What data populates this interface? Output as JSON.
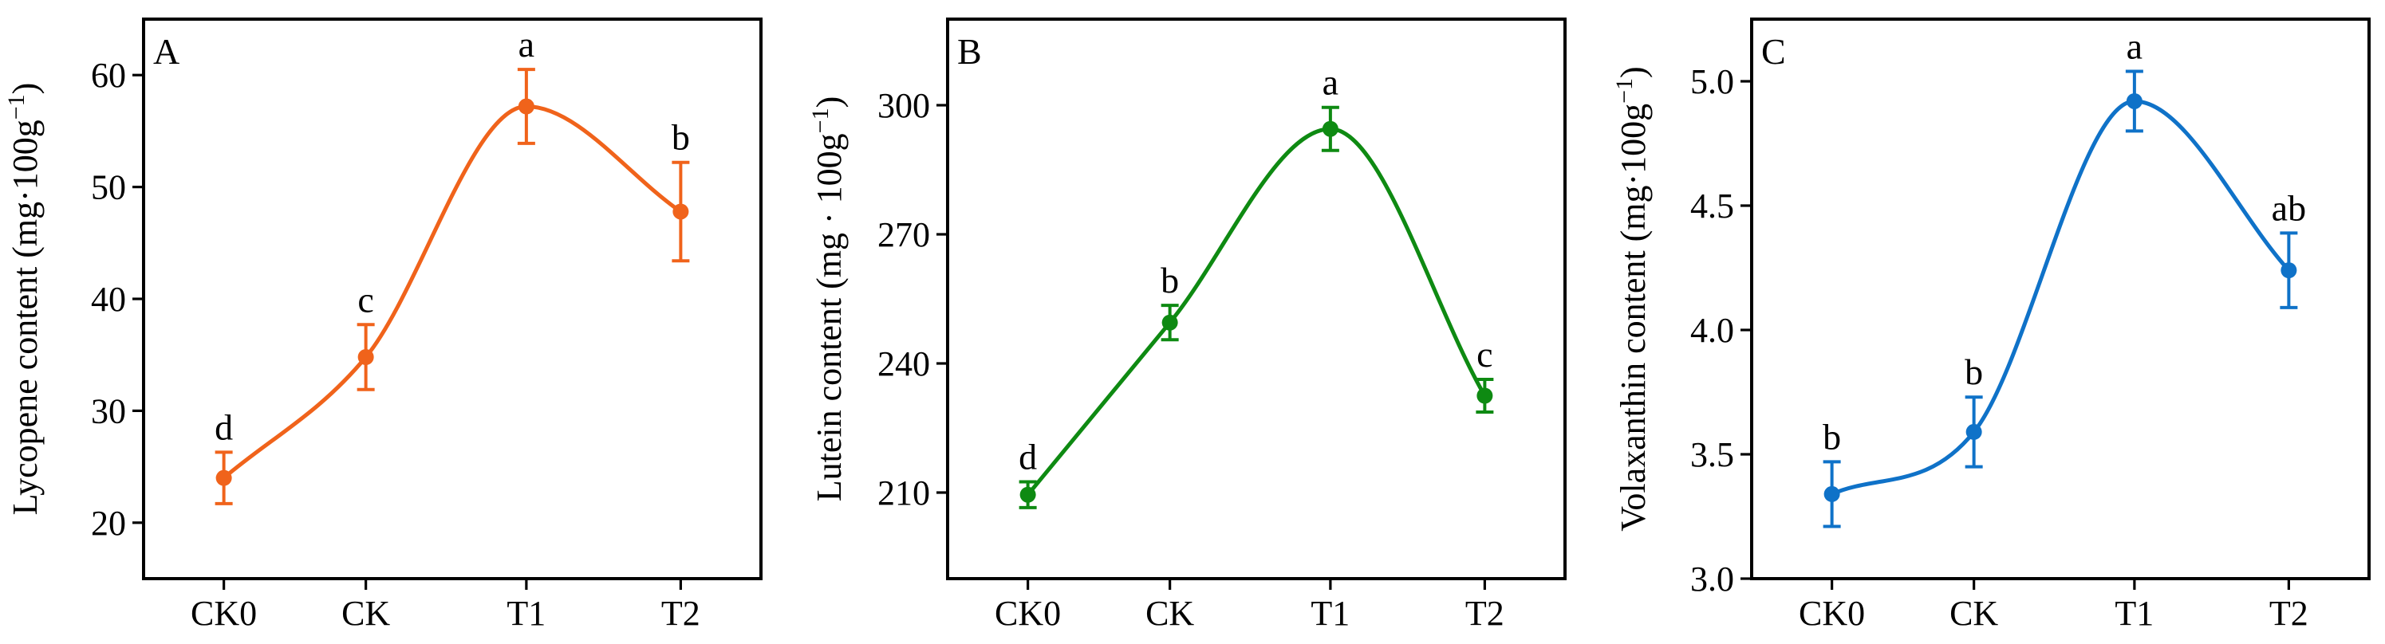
{
  "chart_data": [
    {
      "type": "line",
      "panel_label": "A",
      "color": "#F0631B",
      "categories": [
        "CK0",
        "CK",
        "T1",
        "T2"
      ],
      "values": [
        24.0,
        34.8,
        57.2,
        47.8
      ],
      "errors": [
        2.3,
        2.9,
        3.3,
        4.4
      ],
      "significance": [
        "d",
        "c",
        "a",
        "b"
      ],
      "ylabel_main": "Lycopene content (mg·100g",
      "ylabel_sup": "−1",
      "ylabel_end": ")",
      "ylim": [
        15,
        65
      ],
      "yticks": [
        "20",
        "30",
        "40",
        "50",
        "60"
      ],
      "ytick_values": [
        20,
        30,
        40,
        50,
        60
      ],
      "smooth": true,
      "grid": false
    },
    {
      "type": "line",
      "panel_label": "B",
      "color": "#0E8A12",
      "categories": [
        "CK0",
        "CK",
        "T1",
        "T2"
      ],
      "values": [
        209.5,
        249.5,
        294.5,
        232.5
      ],
      "errors": [
        3.0,
        4.0,
        5.0,
        3.8
      ],
      "significance": [
        "d",
        "b",
        "a",
        "c"
      ],
      "ylabel_main": "Lutein content (mg · 100g",
      "ylabel_sup": "−1",
      "ylabel_end": ")",
      "ylim": [
        190,
        320
      ],
      "yticks": [
        "210",
        "240",
        "270",
        "300"
      ],
      "ytick_values": [
        210,
        240,
        270,
        300
      ],
      "smooth": true,
      "grid": false
    },
    {
      "type": "line",
      "panel_label": "C",
      "color": "#0F72C8",
      "categories": [
        "CK0",
        "CK",
        "T1",
        "T2"
      ],
      "values": [
        3.34,
        3.59,
        4.92,
        4.24
      ],
      "errors": [
        0.13,
        0.14,
        0.12,
        0.15
      ],
      "significance": [
        "b",
        "b",
        "a",
        "ab"
      ],
      "ylabel_main": "Volaxanthin content (mg·100g",
      "ylabel_sup": "−1",
      "ylabel_end": ")",
      "ylim": [
        3.0,
        5.25
      ],
      "yticks": [
        "3.0",
        "3.5",
        "4.0",
        "4.5",
        "5.0"
      ],
      "ytick_values": [
        3.0,
        3.5,
        4.0,
        4.5,
        5.0
      ],
      "smooth": true,
      "grid": false
    }
  ]
}
